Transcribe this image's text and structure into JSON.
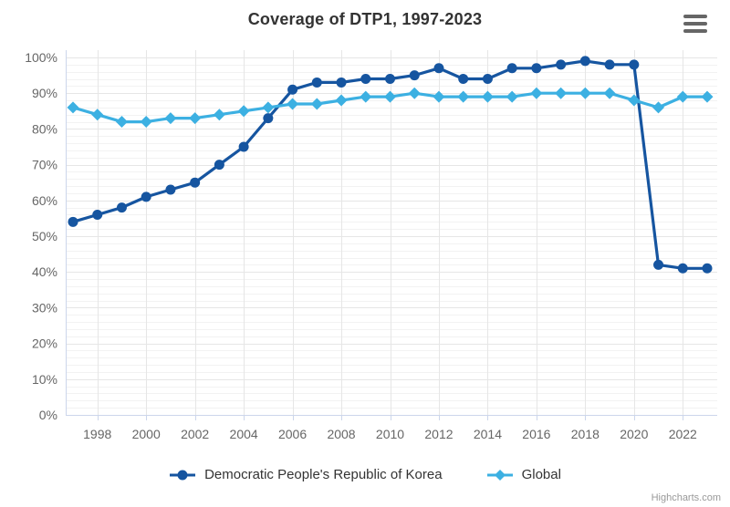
{
  "title": "Coverage of DTP1, 1997-2023",
  "credits": "Highcharts.com",
  "menu": {
    "icon": "hamburger-icon",
    "tooltip_hidden": true
  },
  "colors": {
    "korea_series": "#1655a0",
    "global_series": "#3cb0e2",
    "grid_major": "#e6e6e6",
    "grid_minor": "#f2f2f2",
    "axis_line": "#ccd6eb",
    "tick": "#ccd6eb",
    "axis_label": "#666666",
    "title_text": "#333333",
    "legend_text": "#333333",
    "credits_text": "#999999",
    "menu_icon": "#666666"
  },
  "chart_data": {
    "type": "line",
    "title": "Coverage of DTP1, 1997-2023",
    "xlabel": "",
    "ylabel": "",
    "x": [
      1997,
      1998,
      1999,
      2000,
      2001,
      2002,
      2003,
      2004,
      2005,
      2006,
      2007,
      2008,
      2009,
      2010,
      2011,
      2012,
      2013,
      2014,
      2015,
      2016,
      2017,
      2018,
      2019,
      2020,
      2021,
      2022,
      2023
    ],
    "series": [
      {
        "name": "Democratic People's Republic of Korea",
        "color": "#1655a0",
        "marker": "circle",
        "values": [
          54,
          56,
          58,
          61,
          63,
          65,
          70,
          75,
          83,
          91,
          93,
          93,
          94,
          94,
          95,
          97,
          94,
          94,
          97,
          97,
          98,
          99,
          98,
          98,
          42,
          41,
          41
        ]
      },
      {
        "name": "Global",
        "color": "#3cb0e2",
        "marker": "diamond",
        "values": [
          86,
          84,
          82,
          82,
          83,
          83,
          84,
          85,
          86,
          87,
          87,
          88,
          89,
          89,
          90,
          89,
          89,
          89,
          89,
          90,
          90,
          90,
          90,
          88,
          86,
          89,
          89
        ]
      }
    ],
    "ylim": [
      0,
      100
    ],
    "y_ticks": {
      "values": [
        0,
        10,
        20,
        30,
        40,
        50,
        60,
        70,
        80,
        90,
        100
      ],
      "labels": [
        "0%",
        "10%",
        "20%",
        "30%",
        "40%",
        "50%",
        "60%",
        "70%",
        "80%",
        "90%",
        "100%"
      ]
    },
    "x_ticks": {
      "values": [
        1998,
        2000,
        2002,
        2004,
        2006,
        2008,
        2010,
        2012,
        2014,
        2016,
        2018,
        2020,
        2022
      ],
      "labels": [
        "1998",
        "2000",
        "2002",
        "2004",
        "2006",
        "2008",
        "2010",
        "2012",
        "2014",
        "2016",
        "2018",
        "2020",
        "2022"
      ]
    },
    "minor_y_step": 2,
    "grid": true,
    "legend_position": "bottom"
  }
}
